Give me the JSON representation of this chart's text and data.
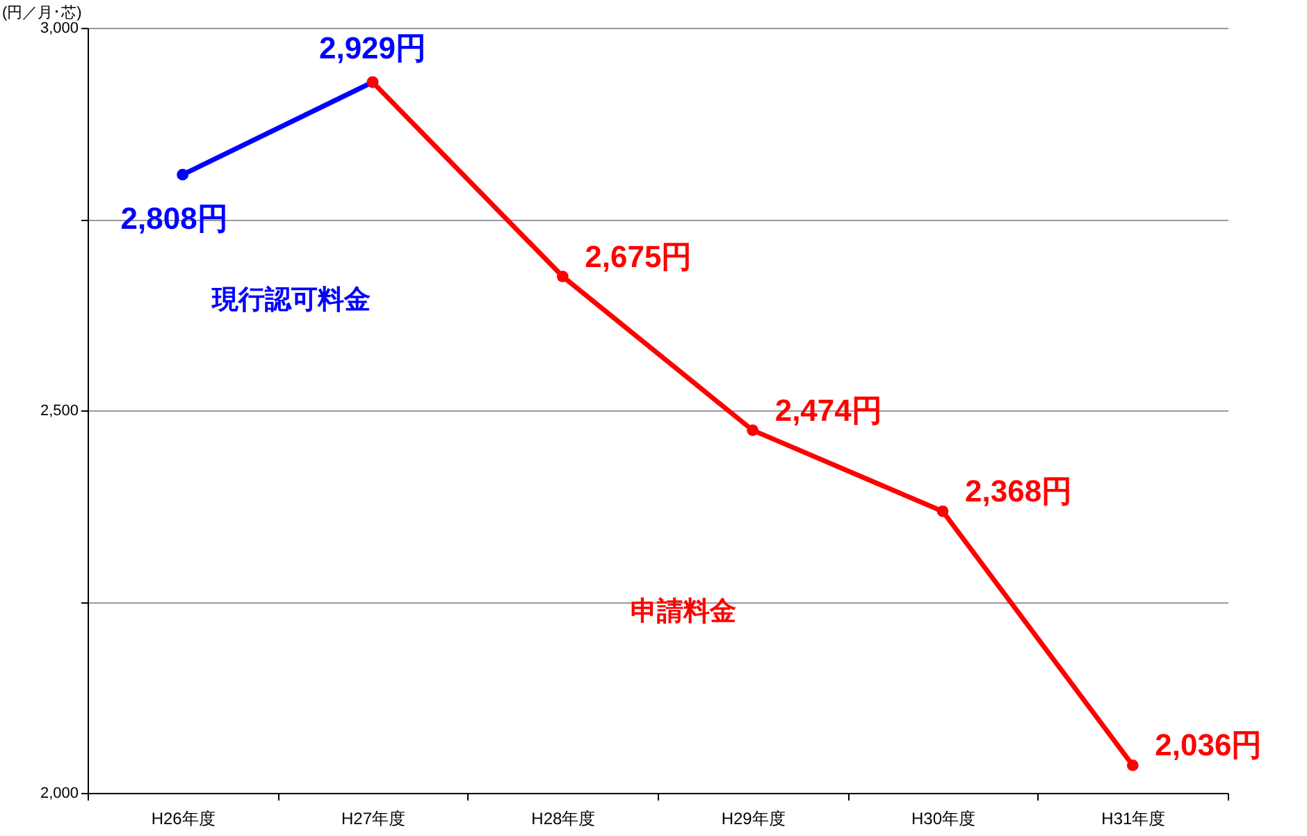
{
  "chart_data": {
    "type": "line",
    "ylabel": "(円／月･芯)",
    "categories": [
      "H26年度",
      "H27年度",
      "H28年度",
      "H29年度",
      "H30年度",
      "H31年度"
    ],
    "series": [
      {
        "name": "現行認可料金",
        "color": "#0000ff",
        "values": [
          2808,
          2929,
          null,
          null,
          null,
          null
        ],
        "value_labels": [
          "2,808円",
          "2,929円",
          null,
          null,
          null,
          null
        ]
      },
      {
        "name": "申請料金",
        "color": "#ff0000",
        "values": [
          null,
          2929,
          2675,
          2474,
          2368,
          2036
        ],
        "value_labels": [
          null,
          null,
          "2,675円",
          "2,474円",
          "2,368円",
          "2,036円"
        ]
      }
    ],
    "ylim": [
      2000,
      3000
    ],
    "yticks": [
      {
        "value": 2000,
        "label": "2,000"
      },
      {
        "value": 2250,
        "label": null
      },
      {
        "value": 2500,
        "label": "2,500"
      },
      {
        "value": 2750,
        "label": null
      },
      {
        "value": 3000,
        "label": "3,000"
      }
    ],
    "grid": "y",
    "marker": "circle",
    "line_style": "solid"
  }
}
